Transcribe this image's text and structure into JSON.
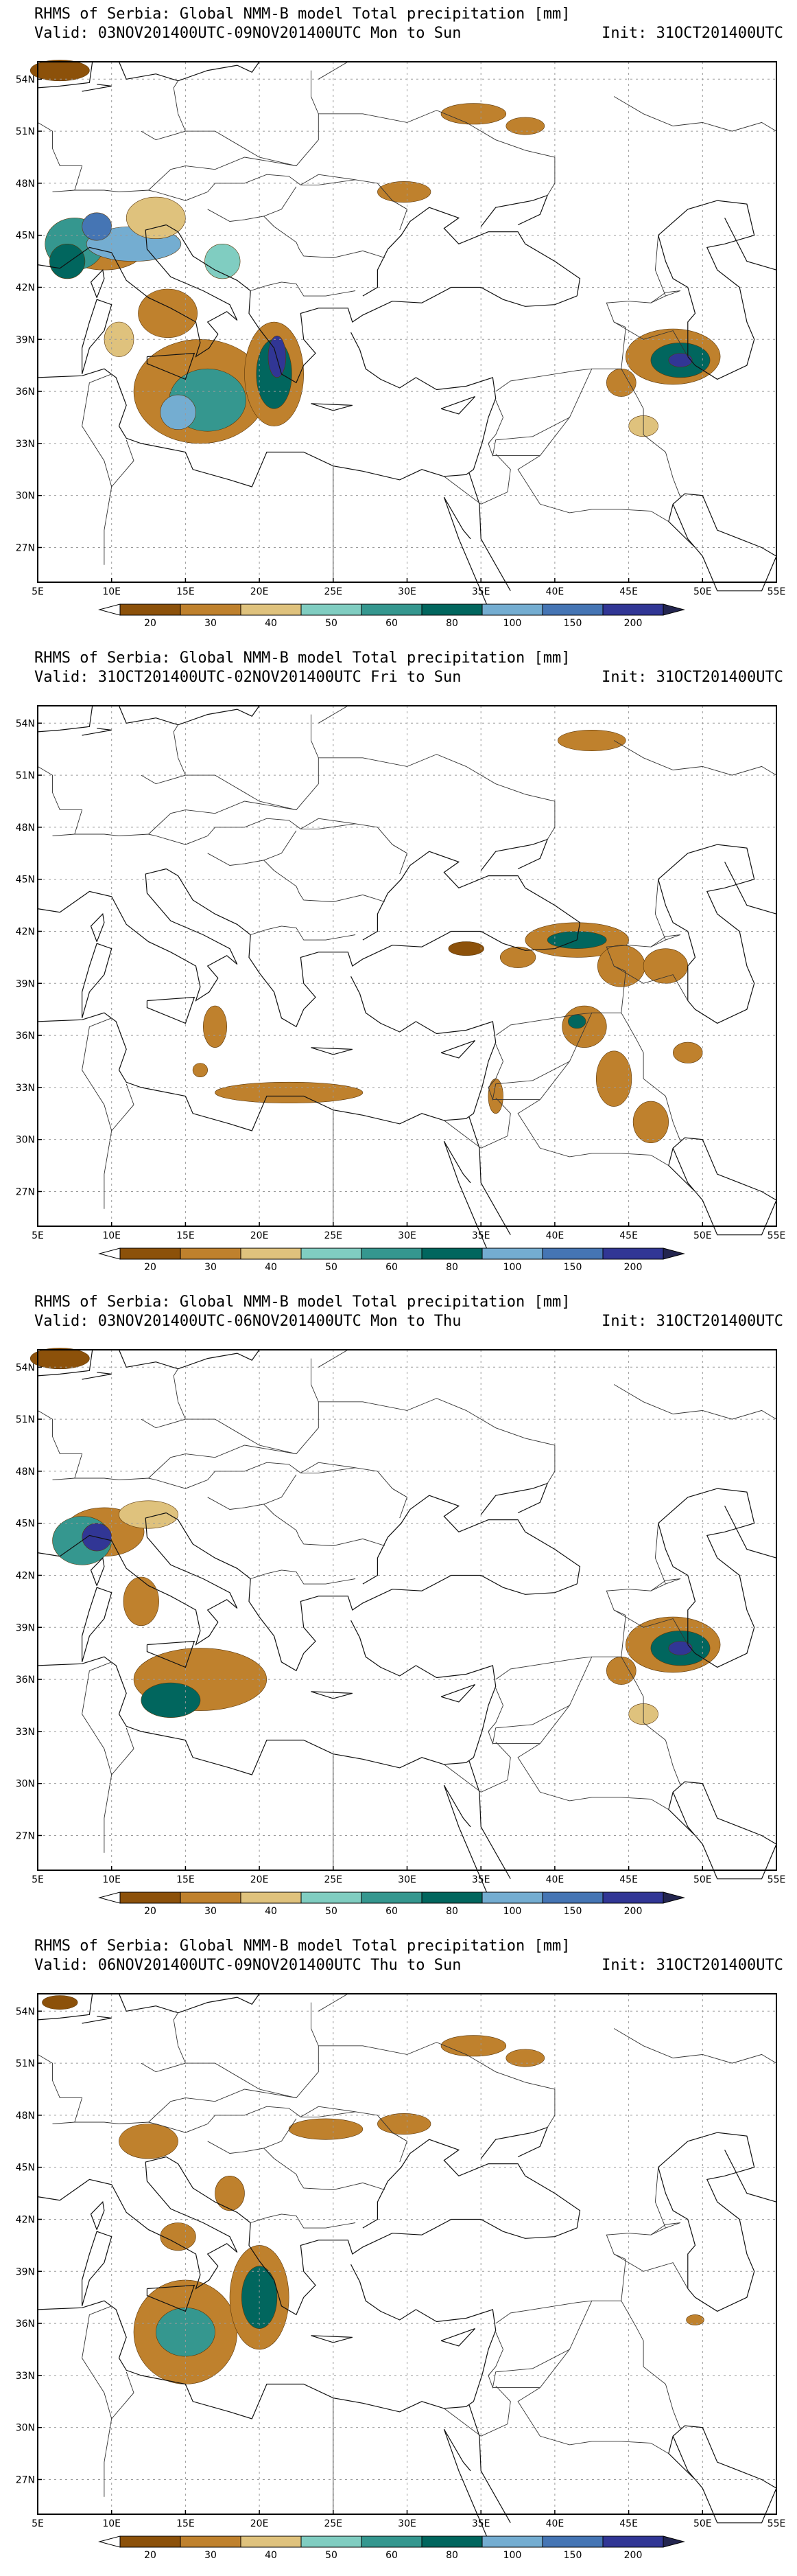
{
  "panels": [
    {
      "title": "RHMS of Serbia: Global NMM-B model Total precipitation [mm]",
      "valid": "Valid: 03NOV201400UTC-09NOV201400UTC Mon to Sun",
      "init": "Init: 31OCT201400UTC",
      "blobs": [
        {
          "lon": 9.5,
          "lat": 44.2,
          "rx": 2.7,
          "ry": 1.2,
          "c": 1
        },
        {
          "lon": 7.5,
          "lat": 44.5,
          "rx": 2.0,
          "ry": 1.5,
          "c": 4
        },
        {
          "lon": 11.5,
          "lat": 44.5,
          "rx": 3.2,
          "ry": 1.0,
          "c": 6
        },
        {
          "lon": 7.0,
          "lat": 43.5,
          "rx": 1.2,
          "ry": 1.0,
          "c": 5
        },
        {
          "lon": 13.0,
          "lat": 46.0,
          "rx": 2.0,
          "ry": 1.2,
          "c": 2
        },
        {
          "lon": 9.0,
          "lat": 45.5,
          "rx": 1.0,
          "ry": 0.8,
          "c": 7
        },
        {
          "lon": 13.8,
          "lat": 40.5,
          "rx": 2.0,
          "ry": 1.4,
          "c": 1
        },
        {
          "lon": 16.0,
          "lat": 36.0,
          "rx": 4.5,
          "ry": 3.0,
          "c": 1
        },
        {
          "lon": 16.5,
          "lat": 35.5,
          "rx": 2.6,
          "ry": 1.8,
          "c": 4
        },
        {
          "lon": 14.5,
          "lat": 34.8,
          "rx": 1.2,
          "ry": 1.0,
          "c": 6
        },
        {
          "lon": 21.0,
          "lat": 37.0,
          "rx": 2.0,
          "ry": 3.0,
          "c": 1
        },
        {
          "lon": 21.0,
          "lat": 37.0,
          "rx": 1.2,
          "ry": 2.0,
          "c": 5
        },
        {
          "lon": 21.2,
          "lat": 38.0,
          "rx": 0.6,
          "ry": 1.2,
          "c": 8
        },
        {
          "lon": 17.5,
          "lat": 43.5,
          "rx": 1.2,
          "ry": 1.0,
          "c": 3
        },
        {
          "lon": 10.5,
          "lat": 39.0,
          "rx": 1.0,
          "ry": 1.0,
          "c": 2
        },
        {
          "lon": 6.5,
          "lat": 54.5,
          "rx": 2.0,
          "ry": 0.6,
          "c": 0
        },
        {
          "lon": 34.5,
          "lat": 52.0,
          "rx": 2.2,
          "ry": 0.6,
          "c": 1
        },
        {
          "lon": 38.0,
          "lat": 51.3,
          "rx": 1.3,
          "ry": 0.5,
          "c": 1
        },
        {
          "lon": 29.8,
          "lat": 47.5,
          "rx": 1.8,
          "ry": 0.6,
          "c": 1
        },
        {
          "lon": 46.0,
          "lat": 34.0,
          "rx": 1.0,
          "ry": 0.6,
          "c": 2
        },
        {
          "lon": 48.0,
          "lat": 38.0,
          "rx": 3.2,
          "ry": 1.6,
          "c": 1
        },
        {
          "lon": 48.5,
          "lat": 37.8,
          "rx": 2.0,
          "ry": 1.0,
          "c": 5
        },
        {
          "lon": 48.5,
          "lat": 37.8,
          "rx": 0.8,
          "ry": 0.4,
          "c": 8
        },
        {
          "lon": 44.5,
          "lat": 36.5,
          "rx": 1.0,
          "ry": 0.8,
          "c": 1
        }
      ]
    },
    {
      "title": "RHMS of Serbia: Global NMM-B model Total precipitation [mm]",
      "valid": "Valid: 31OCT201400UTC-02NOV201400UTC Fri to Sun",
      "init": "Init: 31OCT201400UTC",
      "blobs": [
        {
          "lon": 41.5,
          "lat": 41.5,
          "rx": 3.5,
          "ry": 1.0,
          "c": 1
        },
        {
          "lon": 41.5,
          "lat": 41.5,
          "rx": 2.0,
          "ry": 0.5,
          "c": 5
        },
        {
          "lon": 37.5,
          "lat": 40.5,
          "rx": 1.2,
          "ry": 0.6,
          "c": 1
        },
        {
          "lon": 34.0,
          "lat": 41.0,
          "rx": 1.2,
          "ry": 0.4,
          "c": 0
        },
        {
          "lon": 44.5,
          "lat": 40.0,
          "rx": 1.6,
          "ry": 1.2,
          "c": 1
        },
        {
          "lon": 47.5,
          "lat": 40.0,
          "rx": 1.5,
          "ry": 1.0,
          "c": 1
        },
        {
          "lon": 42.0,
          "lat": 36.5,
          "rx": 1.5,
          "ry": 1.2,
          "c": 1
        },
        {
          "lon": 41.5,
          "lat": 36.8,
          "rx": 0.6,
          "ry": 0.4,
          "c": 5
        },
        {
          "lon": 44.0,
          "lat": 33.5,
          "rx": 1.2,
          "ry": 1.6,
          "c": 1
        },
        {
          "lon": 46.5,
          "lat": 31.0,
          "rx": 1.2,
          "ry": 1.2,
          "c": 1
        },
        {
          "lon": 49.0,
          "lat": 35.0,
          "rx": 1.0,
          "ry": 0.6,
          "c": 1
        },
        {
          "lon": 17.0,
          "lat": 36.5,
          "rx": 0.8,
          "ry": 1.2,
          "c": 1
        },
        {
          "lon": 16.0,
          "lat": 34.0,
          "rx": 0.5,
          "ry": 0.4,
          "c": 1
        },
        {
          "lon": 22.0,
          "lat": 32.7,
          "rx": 5.0,
          "ry": 0.6,
          "c": 1
        },
        {
          "lon": 36.0,
          "lat": 32.5,
          "rx": 0.5,
          "ry": 1.0,
          "c": 1
        },
        {
          "lon": 42.5,
          "lat": 53.0,
          "rx": 2.3,
          "ry": 0.6,
          "c": 1
        }
      ]
    },
    {
      "title": "RHMS of Serbia: Global NMM-B model Total precipitation [mm]",
      "valid": "Valid: 03NOV201400UTC-06NOV201400UTC Mon to Thu",
      "init": "Init: 31OCT201400UTC",
      "blobs": [
        {
          "lon": 9.5,
          "lat": 44.5,
          "rx": 2.7,
          "ry": 1.4,
          "c": 1
        },
        {
          "lon": 8.0,
          "lat": 44.0,
          "rx": 2.0,
          "ry": 1.4,
          "c": 4
        },
        {
          "lon": 9.0,
          "lat": 44.2,
          "rx": 1.0,
          "ry": 0.8,
          "c": 8
        },
        {
          "lon": 12.5,
          "lat": 45.5,
          "rx": 2.0,
          "ry": 0.8,
          "c": 2
        },
        {
          "lon": 12.0,
          "lat": 40.5,
          "rx": 1.2,
          "ry": 1.4,
          "c": 1
        },
        {
          "lon": 16.0,
          "lat": 36.0,
          "rx": 4.5,
          "ry": 1.8,
          "c": 1
        },
        {
          "lon": 14.0,
          "lat": 34.8,
          "rx": 2.0,
          "ry": 1.0,
          "c": 5
        },
        {
          "lon": 6.5,
          "lat": 54.5,
          "rx": 2.0,
          "ry": 0.6,
          "c": 0
        },
        {
          "lon": 48.0,
          "lat": 38.0,
          "rx": 3.2,
          "ry": 1.6,
          "c": 1
        },
        {
          "lon": 48.5,
          "lat": 37.8,
          "rx": 2.0,
          "ry": 1.0,
          "c": 5
        },
        {
          "lon": 48.5,
          "lat": 37.8,
          "rx": 0.8,
          "ry": 0.4,
          "c": 8
        },
        {
          "lon": 44.5,
          "lat": 36.5,
          "rx": 1.0,
          "ry": 0.8,
          "c": 1
        },
        {
          "lon": 46.0,
          "lat": 34.0,
          "rx": 1.0,
          "ry": 0.6,
          "c": 2
        }
      ]
    },
    {
      "title": "RHMS of Serbia: Global NMM-B model Total precipitation [mm]",
      "valid": "Valid: 06NOV201400UTC-09NOV201400UTC Thu to Sun",
      "init": "Init: 31OCT201400UTC",
      "blobs": [
        {
          "lon": 12.5,
          "lat": 46.5,
          "rx": 2.0,
          "ry": 1.0,
          "c": 1
        },
        {
          "lon": 18.0,
          "lat": 43.5,
          "rx": 1.0,
          "ry": 1.0,
          "c": 1
        },
        {
          "lon": 14.5,
          "lat": 41.0,
          "rx": 1.2,
          "ry": 0.8,
          "c": 1
        },
        {
          "lon": 15.0,
          "lat": 35.5,
          "rx": 3.5,
          "ry": 3.0,
          "c": 1
        },
        {
          "lon": 15.0,
          "lat": 35.5,
          "rx": 2.0,
          "ry": 1.4,
          "c": 4
        },
        {
          "lon": 20.0,
          "lat": 37.5,
          "rx": 2.0,
          "ry": 3.0,
          "c": 1
        },
        {
          "lon": 20.0,
          "lat": 37.5,
          "rx": 1.2,
          "ry": 1.8,
          "c": 5
        },
        {
          "lon": 29.8,
          "lat": 47.5,
          "rx": 1.8,
          "ry": 0.6,
          "c": 1
        },
        {
          "lon": 24.5,
          "lat": 47.2,
          "rx": 2.5,
          "ry": 0.6,
          "c": 1
        },
        {
          "lon": 34.5,
          "lat": 52.0,
          "rx": 2.2,
          "ry": 0.6,
          "c": 1
        },
        {
          "lon": 38.0,
          "lat": 51.3,
          "rx": 1.3,
          "ry": 0.5,
          "c": 1
        },
        {
          "lon": 49.5,
          "lat": 36.2,
          "rx": 0.6,
          "ry": 0.3,
          "c": 1
        },
        {
          "lon": 6.5,
          "lat": 54.5,
          "rx": 1.2,
          "ry": 0.4,
          "c": 0
        }
      ]
    }
  ],
  "axes": {
    "lon_range": [
      5,
      55
    ],
    "lat_range": [
      25,
      55
    ],
    "lon_ticks": [
      "5E",
      "10E",
      "15E",
      "20E",
      "25E",
      "30E",
      "35E",
      "40E",
      "45E",
      "50E",
      "55E"
    ],
    "lat_ticks": [
      "27N",
      "30N",
      "33N",
      "36N",
      "39N",
      "42N",
      "45N",
      "48N",
      "51N",
      "54N"
    ]
  },
  "legend": {
    "labels": [
      "20",
      "30",
      "40",
      "50",
      "60",
      "80",
      "100",
      "150",
      "200"
    ],
    "colors": [
      "#8c510a",
      "#bf812d",
      "#dfc27d",
      "#80cdc1",
      "#35978f",
      "#01665e",
      "#74add1",
      "#4575b4",
      "#313695"
    ]
  }
}
